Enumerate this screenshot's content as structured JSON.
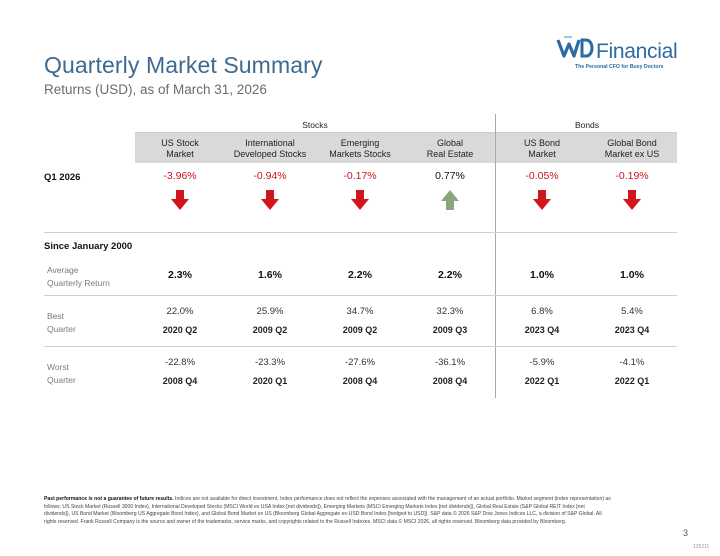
{
  "header": {
    "title": "Quarterly Market Summary",
    "subtitle": "Returns (USD), as of March 31, 2026"
  },
  "logo": {
    "name": "Financial",
    "tagline": "The Personal CFO for Busy Doctors"
  },
  "groups": {
    "stocks": "Stocks",
    "bonds": "Bonds"
  },
  "columns": [
    {
      "line1": "US Stock",
      "line2": "Market"
    },
    {
      "line1": "International",
      "line2": "Developed Stocks"
    },
    {
      "line1": "Emerging",
      "line2": "Markets Stocks"
    },
    {
      "line1": "Global",
      "line2": "Real Estate"
    },
    {
      "line1": "US Bond",
      "line2": "Market"
    },
    {
      "line1": "Global Bond",
      "line2": "Market ex US"
    }
  ],
  "q1": {
    "label": "Q1 2026",
    "values": [
      "-3.96%",
      "-0.94%",
      "-0.17%",
      "0.77%",
      "-0.05%",
      "-0.19%"
    ],
    "directions": [
      "down",
      "down",
      "down",
      "up",
      "down",
      "down"
    ]
  },
  "since": {
    "label": "Since January 2000",
    "average": {
      "label1": "Average",
      "label2": "Quarterly Return",
      "values": [
        "2.3%",
        "1.6%",
        "2.2%",
        "2.2%",
        "1.0%",
        "1.0%"
      ]
    },
    "best": {
      "label1": "Best",
      "label2": "Quarter",
      "values": [
        "22.0%",
        "25.9%",
        "34.7%",
        "32.3%",
        "6.8%",
        "5.4%"
      ],
      "dates": [
        "2020 Q2",
        "2009 Q2",
        "2009 Q2",
        "2009 Q3",
        "2023 Q4",
        "2023 Q4"
      ]
    },
    "worst": {
      "label1": "Worst",
      "label2": "Quarter",
      "values": [
        "-22.8%",
        "-23.3%",
        "-27.6%",
        "-36.1%",
        "-5.9%",
        "-4.1%"
      ],
      "dates": [
        "2008 Q4",
        "2020 Q1",
        "2008 Q4",
        "2008 Q4",
        "2022 Q1",
        "2022 Q1"
      ]
    }
  },
  "colors": {
    "negative": "#c8161d",
    "down_arrow": "#d0161c",
    "up_arrow": "#8aa77b",
    "title": "#3e6a90"
  },
  "footer": {
    "bold": "Past performance is not a guarantee of future results.",
    "text": " Indices are not available for direct investment. Index performance does not reflect the expenses associated with the management of an actual portfolio. Market segment (index representation) as follows: US Stock Market (Russell 3000 Index), International Developed Stocks (MSCI World ex USA Index [net dividends]), Emerging Markets (MSCI Emerging Markets Index [net dividends]), Global Real Estate (S&P Global REIT Index [net dividends]), US Bond Market (Bloomberg US Aggregate Bond Index), and Global Bond Market ex US (Bloomberg Global Aggregate ex-USD Bond Index [hedged to USD]). S&P data © 2026 S&P Dow Jones Indices LLC, a division of S&P Global. All rights reserved. Frank Russell Company is the source and owner of the trademarks, service marks, and copyrights related to the Russell Indexes. MSCI data © MSCI 2026, all rights reserved. Bloomberg data provided by Bloomberg."
  },
  "page_number": "3",
  "doc_code": "135211"
}
